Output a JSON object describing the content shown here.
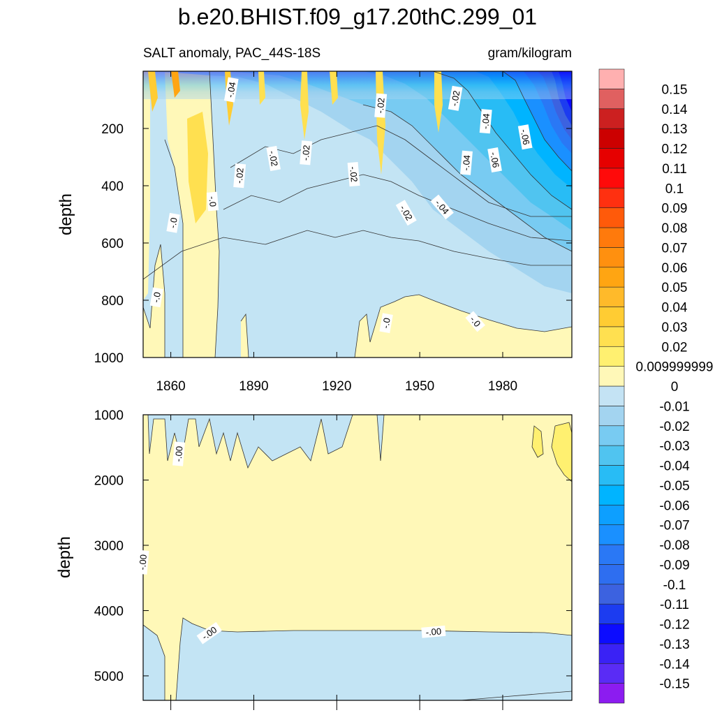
{
  "chart_data": {
    "type": "heatmap",
    "title": "b.e20.BHIST.f09_g17.20thC.299_01",
    "subtitle_left": "SALT anomaly, PAC_44S-18S",
    "subtitle_right": "gram/kilogram",
    "ylabel": "depth",
    "x_range": [
      1850,
      2005
    ],
    "x_ticks": [
      1860,
      1890,
      1920,
      1950,
      1980
    ],
    "x_tick_labels": [
      "1860",
      "1890",
      "1920",
      "1950",
      "1980"
    ],
    "panels": [
      {
        "name": "upper",
        "y_range": [
          0,
          1000
        ],
        "y_ticks": [
          200,
          400,
          600,
          800,
          1000
        ],
        "y_tick_labels": [
          "200",
          "400",
          "600",
          "800",
          "1000"
        ],
        "y_reversed": true,
        "x_tick_labels_shown": true,
        "contour_labels": [
          {
            "text": "-.04",
            "x": 1882,
            "y": 65,
            "rot": -80
          },
          {
            "text": "-.02",
            "x": 1936,
            "y": 120,
            "rot": -85
          },
          {
            "text": "-.02",
            "x": 1963,
            "y": 95,
            "rot": -80
          },
          {
            "text": "-.04",
            "x": 1974,
            "y": 175,
            "rot": -85
          },
          {
            "text": "-.06",
            "x": 1988,
            "y": 230,
            "rot": 80
          },
          {
            "text": "-.02",
            "x": 1897,
            "y": 305,
            "rot": 80
          },
          {
            "text": "-.02",
            "x": 1909,
            "y": 285,
            "rot": -85
          },
          {
            "text": "-.04",
            "x": 1967,
            "y": 320,
            "rot": -85
          },
          {
            "text": "-.06",
            "x": 1977,
            "y": 310,
            "rot": 80
          },
          {
            "text": "-.02",
            "x": 1885,
            "y": 365,
            "rot": -85
          },
          {
            "text": "-.02",
            "x": 1926,
            "y": 360,
            "rot": 85
          },
          {
            "text": "-.0",
            "x": 1875,
            "y": 455,
            "rot": 85
          },
          {
            "text": "-.02",
            "x": 1945,
            "y": 495,
            "rot": 60
          },
          {
            "text": "-.04",
            "x": 1958,
            "y": 475,
            "rot": 50
          },
          {
            "text": "-.0",
            "x": 1861,
            "y": 530,
            "rot": -80
          },
          {
            "text": "-.0",
            "x": 1855,
            "y": 790,
            "rot": -80
          },
          {
            "text": "-.0",
            "x": 1938,
            "y": 880,
            "rot": -80
          },
          {
            "text": "-.0",
            "x": 1970,
            "y": 875,
            "rot": 50
          }
        ]
      },
      {
        "name": "lower",
        "y_range": [
          1000,
          5375
        ],
        "y_ticks": [
          1000,
          2000,
          3000,
          4000,
          5000
        ],
        "y_tick_labels": [
          "1000",
          "2000",
          "3000",
          "4000",
          "5000"
        ],
        "y_reversed": true,
        "x_tick_labels_shown": false,
        "contour_labels": [
          {
            "text": "-.00",
            "x": 1863,
            "y": 1600,
            "rot": -85
          },
          {
            "text": "-.00",
            "x": 1850,
            "y": 3260,
            "rot": -85
          },
          {
            "text": "-.00",
            "x": 1874,
            "y": 4350,
            "rot": -35
          },
          {
            "text": "-.00",
            "x": 1955,
            "y": 4330,
            "rot": -5
          }
        ]
      }
    ],
    "colorbar": {
      "colors": [
        "#8c1cf0",
        "#5a2cf5",
        "#3a22f5",
        "#0c0cff",
        "#1c3cf0",
        "#3c62e0",
        "#2e6ef0",
        "#2a78f5",
        "#1a90ff",
        "#0d9fff",
        "#00b4ff",
        "#28bcf5",
        "#50c4f0",
        "#78cbf2",
        "#a3d4f0",
        "#c4e3f4",
        "#fff8b8",
        "#fff070",
        "#ffe050",
        "#ffcc33",
        "#ffba2a",
        "#ffa512",
        "#ff900f",
        "#ff7a0c",
        "#ff5a0a",
        "#ff3010",
        "#ff0a0a",
        "#e60000",
        "#cc0000",
        "#cc2020",
        "#e06060",
        "#ffb0b0"
      ],
      "labels": [
        "-0.15",
        "-0.14",
        "-0.13",
        "-0.12",
        "-0.11",
        "-0.1",
        "-0.09",
        "-0.08",
        "-0.07",
        "-0.06",
        "-0.05",
        "-0.04",
        "-0.03",
        "-0.02",
        "-0.01",
        "0",
        "0.009999999",
        "0.02",
        "0.03",
        "0.04",
        "0.05",
        "0.06",
        "0.07",
        "0.08",
        "0.09",
        "0.1",
        "0.11",
        "0.12",
        "0.13",
        "0.14",
        "0.15"
      ]
    }
  }
}
